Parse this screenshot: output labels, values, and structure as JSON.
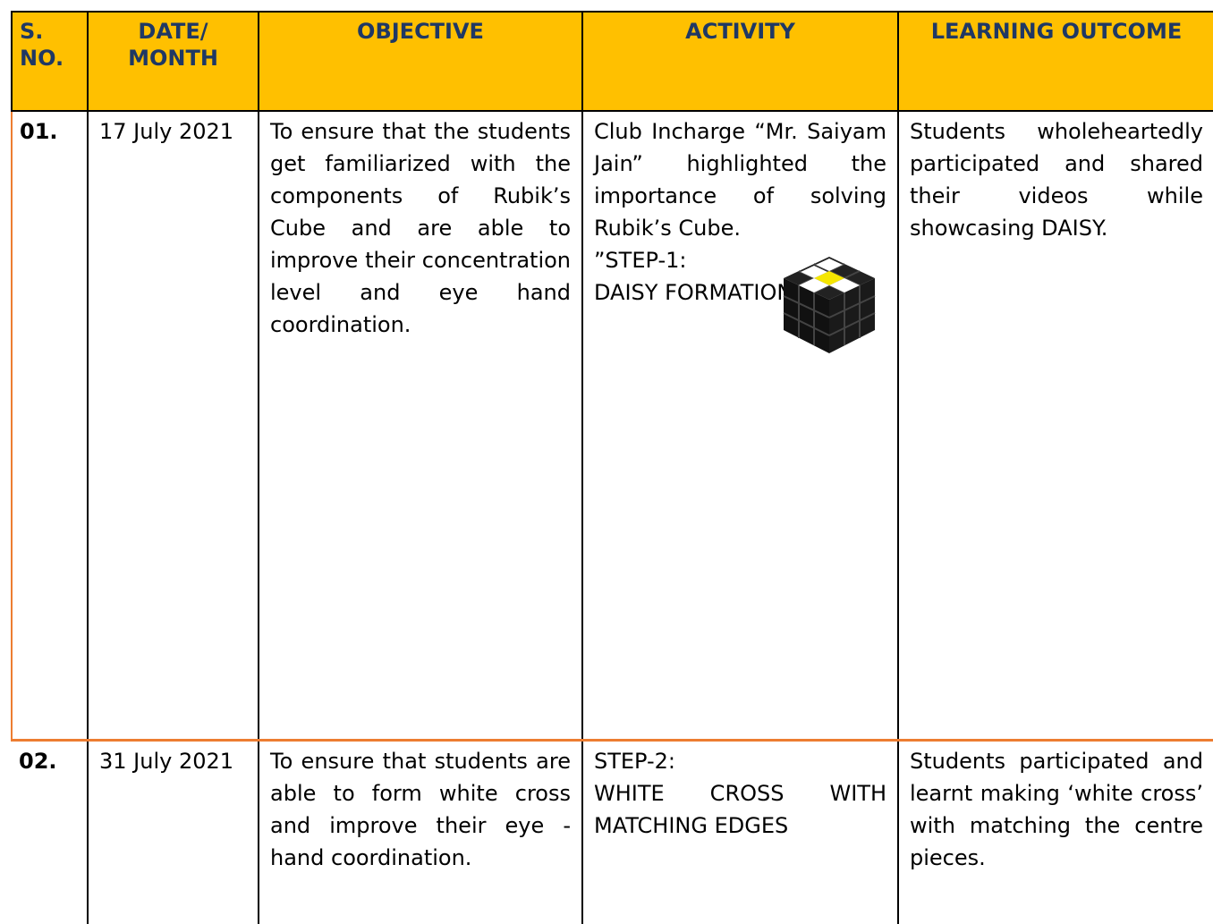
{
  "table": {
    "headers": [
      "S. NO.",
      "DATE/ MONTH",
      "OBJECTIVE",
      "ACTIVITY",
      "LEARNING OUTCOME"
    ],
    "rows": [
      [
        [
          "01."
        ],
        [
          "17 July 2021"
        ],
        [
          "To ensure that the students get familiarized with the components of Rubik’s Cube and are able to improve their concentration level and eye hand coordination."
        ],
        [
          "Club Incharge “Mr. Saiyam Jain” highlighted the importance of solving Rubik’s Cube.",
          "”STEP-1:",
          "DAISY FORMATION"
        ],
        [
          "Students wholeheartedly participated and shared their videos while showcasing DAISY."
        ]
      ],
      [
        [
          "02."
        ],
        [
          "31 July 2021"
        ],
        [
          "To ensure that students are able to form white cross and improve their eye - hand coordination."
        ],
        [
          "STEP-2:",
          "WHITE CROSS WITH MATCHING EDGES"
        ],
        [
          "Students participated and learnt making ‘white cross’ with matching the centre pieces."
        ]
      ]
    ]
  }
}
